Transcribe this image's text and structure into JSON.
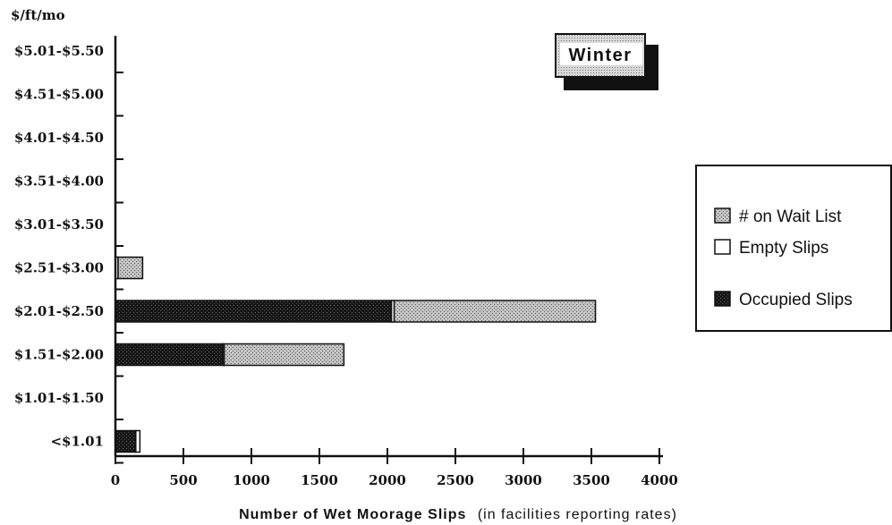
{
  "chart_data": {
    "type": "bar",
    "orientation": "horizontal",
    "stacked": true,
    "badge": "Winter",
    "y_axis_unit": "$/ft/mo",
    "xlabel_bold": "Number of Wet Moorage Slips",
    "xlabel_note": "(in facilities reporting rates)",
    "categories": [
      "<$1.01",
      "$1.01-$1.50",
      "$1.51-$2.00",
      "$2.01-$2.50",
      "$2.51-$3.00",
      "$3.01-$3.50",
      "$3.51-$4.00",
      "$4.01-$4.50",
      "$4.51-$5.00",
      "$5.01-$5.50"
    ],
    "xticks": [
      "0",
      "500",
      "1000",
      "1500",
      "2000",
      "2500",
      "3000",
      "3500",
      "4000"
    ],
    "xlim": [
      0,
      4000
    ],
    "series": [
      {
        "name": "Occupied Slips",
        "color": "#1a1a1a",
        "values": [
          150,
          0,
          790,
          2030,
          0,
          0,
          0,
          0,
          0,
          0
        ]
      },
      {
        "name": "Empty Slips",
        "color": "#ffffff",
        "values": [
          30,
          0,
          10,
          20,
          20,
          0,
          0,
          0,
          0,
          0
        ]
      },
      {
        "name": "# on Wait List",
        "color": "#b8b8b8",
        "values": [
          0,
          0,
          880,
          1480,
          180,
          0,
          0,
          0,
          0,
          0
        ]
      }
    ],
    "legend": {
      "position": "right",
      "order": [
        "# on Wait List",
        "Empty Slips",
        "Occupied Slips"
      ]
    },
    "grid": false
  }
}
